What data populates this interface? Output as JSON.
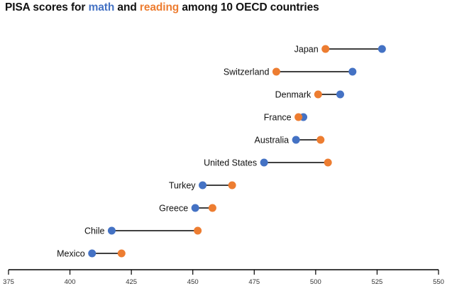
{
  "title": {
    "prefix": "PISA scores for ",
    "series1": "math",
    "middle": " and ",
    "series2": "reading",
    "suffix": " among 10 OECD countries"
  },
  "chart_data": {
    "type": "dumbbell",
    "title": "PISA scores for math and reading among 10 OECD countries",
    "xlabel": "",
    "ylabel": "",
    "xlim": [
      375,
      550
    ],
    "xticks": [
      375,
      400,
      425,
      450,
      475,
      500,
      525,
      550
    ],
    "grid": false,
    "legend": "none (series colors in title)",
    "colors": {
      "math": "#4472c4",
      "reading": "#ed7d31",
      "connector": "#000000"
    },
    "categories": [
      "Japan",
      "Switzerland",
      "Denmark",
      "France",
      "Australia",
      "United States",
      "Turkey",
      "Greece",
      "Chile",
      "Mexico"
    ],
    "series": [
      {
        "name": "math",
        "values": [
          527,
          515,
          510,
          495,
          492,
          479,
          454,
          451,
          417,
          409
        ]
      },
      {
        "name": "reading",
        "values": [
          504,
          484,
          501,
          493,
          502,
          505,
          466,
          458,
          452,
          421
        ]
      }
    ]
  }
}
